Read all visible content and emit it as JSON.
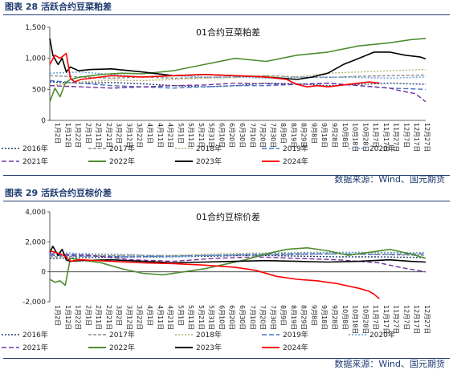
{
  "figures": [
    {
      "caption": "图表 28 活跃合约豆菜粕差",
      "source": "数据来源：Wind、国元期货",
      "chart_data": {
        "type": "line",
        "title": "01合约豆菜粕差",
        "yticks": [
          "1,500",
          "1,000",
          "500",
          "0"
        ],
        "ylim": [
          0,
          1500
        ],
        "xtick_labels": [
          "1月2日",
          "1月12日",
          "1月22日",
          "2月1日",
          "2月11日",
          "2月21日",
          "3月2日",
          "3月12日",
          "3月22日",
          "4月1日",
          "4月11日",
          "4月21日",
          "5月1日",
          "5月11日",
          "5月21日",
          "5月31日",
          "6月10日",
          "6月20日",
          "6月30日",
          "7月10日",
          "7月20日",
          "7月30日",
          "8月9日",
          "8月19日",
          "8月29日",
          "9月8日",
          "9月18日",
          "9月28日",
          "10月8日",
          "10月18日",
          "10月28日",
          "11月7日",
          "11月17日",
          "11月27日",
          "12月7日",
          "12月17日",
          "12月27日"
        ],
        "legend": [
          "2016年",
          "2017年",
          "2018年",
          "2019年",
          "2020年",
          "2021年",
          "2022年",
          "2023年",
          "2024年"
        ],
        "series": [
          {
            "name": "2016年",
            "color": "#1f3b70",
            "dash": "2,2",
            "x": [
              0,
              30,
              60,
              90,
              120,
              150,
              180,
              210,
              240,
              270,
              300,
              330,
              365
            ],
            "y": [
              620,
              600,
              610,
              590,
              560,
              540,
              560,
              600,
              590,
              560,
              580,
              600,
              580
            ]
          },
          {
            "name": "2017年",
            "color": "#8c8c8c",
            "dash": "4,2",
            "x": [
              0,
              30,
              60,
              90,
              120,
              150,
              180,
              210,
              240,
              270,
              300,
              330,
              365
            ],
            "y": [
              720,
              700,
              680,
              700,
              680,
              690,
              700,
              720,
              700,
              690,
              710,
              720,
              730
            ]
          },
          {
            "name": "2018年",
            "color": "#b5b06e",
            "dash": "2,2",
            "x": [
              0,
              30,
              60,
              90,
              120,
              150,
              180,
              210,
              240,
              270,
              300,
              330,
              365
            ],
            "y": [
              560,
              620,
              650,
              640,
              660,
              680,
              690,
              720,
              700,
              760,
              780,
              800,
              820
            ]
          },
          {
            "name": "2019年",
            "color": "#4472c4",
            "dash": "6,3",
            "x": [
              0,
              30,
              60,
              90,
              120,
              150,
              180,
              210,
              240,
              270,
              300,
              330,
              365
            ],
            "y": [
              640,
              600,
              560,
              540,
              520,
              540,
              560,
              560,
              580,
              600,
              560,
              520,
              500
            ]
          },
          {
            "name": "2020年",
            "color": "#5b9bd5",
            "dash": "2,2",
            "x": [
              0,
              30,
              60,
              90,
              120,
              150,
              180,
              210,
              240,
              270,
              300,
              330,
              365
            ],
            "y": [
              760,
              780,
              740,
              700,
              720,
              700,
              700,
              680,
              690,
              700,
              690,
              680,
              700
            ]
          },
          {
            "name": "2021年",
            "color": "#7030a0",
            "dash": "6,3",
            "x": [
              0,
              30,
              60,
              90,
              120,
              150,
              180,
              210,
              240,
              270,
              300,
              330,
              340,
              355,
              365
            ],
            "y": [
              560,
              540,
              520,
              540,
              560,
              570,
              600,
              590,
              580,
              600,
              560,
              520,
              480,
              430,
              300
            ]
          },
          {
            "name": "2022年",
            "color": "#4e8c2e",
            "dash": "",
            "x": [
              0,
              5,
              10,
              15,
              20,
              30,
              50,
              70,
              90,
              120,
              150,
              180,
              210,
              240,
              270,
              300,
              330,
              350,
              365
            ],
            "y": [
              300,
              520,
              380,
              600,
              660,
              700,
              740,
              760,
              750,
              800,
              900,
              1000,
              950,
              1050,
              1100,
              1200,
              1250,
              1300,
              1320
            ]
          },
          {
            "name": "2023年",
            "color": "#000000",
            "dash": "",
            "x": [
              0,
              3,
              8,
              12,
              16,
              20,
              28,
              40,
              60,
              90,
              120,
              150,
              180,
              210,
              240,
              255,
              270,
              285,
              300,
              315,
              330,
              345,
              360,
              365
            ],
            "y": [
              1320,
              1050,
              900,
              1000,
              780,
              860,
              800,
              820,
              830,
              780,
              720,
              740,
              720,
              700,
              660,
              700,
              760,
              900,
              1000,
              1100,
              1100,
              1050,
              1020,
              990
            ]
          },
          {
            "name": "2024年",
            "color": "#ff0000",
            "dash": "",
            "x": [
              0,
              5,
              10,
              16,
              20,
              24,
              30,
              60,
              90,
              120,
              150,
              180,
              210,
              230,
              240,
              250,
              260,
              270,
              280,
              290,
              300,
              310,
              320
            ],
            "y": [
              900,
              1050,
              1000,
              1080,
              680,
              620,
              660,
              720,
              700,
              720,
              740,
              720,
              700,
              660,
              580,
              540,
              560,
              540,
              560,
              580,
              600,
              620,
              600
            ]
          }
        ]
      }
    },
    {
      "caption": "图表 29 活跃合约豆棕价差",
      "source": "数据来源：Wind、国元期货",
      "chart_data": {
        "type": "line",
        "title": "01合约豆棕价差",
        "yticks": [
          "4,000",
          "2,000",
          "0",
          "-2,000"
        ],
        "ylim": [
          -2000,
          4000
        ],
        "xtick_labels": [
          "1月2日",
          "1月12日",
          "1月22日",
          "2月1日",
          "2月11日",
          "2月21日",
          "3月2日",
          "3月12日",
          "3月22日",
          "4月1日",
          "4月11日",
          "4月21日",
          "5月1日",
          "5月11日",
          "5月21日",
          "5月31日",
          "6月10日",
          "6月20日",
          "6月30日",
          "7月10日",
          "7月20日",
          "7月30日",
          "8月9日",
          "8月19日",
          "8月29日",
          "9月8日",
          "9月18日",
          "9月28日",
          "10月8日",
          "10月18日",
          "10月28日",
          "11月7日",
          "11月17日",
          "11月27日",
          "12月7日",
          "12月17日",
          "12月27日"
        ],
        "legend": [
          "2016年",
          "2017年",
          "2018年",
          "2019年",
          "2020年",
          "2021年",
          "2022年",
          "2023年",
          "2024年"
        ],
        "series": [
          {
            "name": "2016年",
            "color": "#1f3b70",
            "dash": "2,2",
            "x": [
              0,
              40,
              80,
              120,
              160,
              200,
              240,
              280,
              320,
              365
            ],
            "y": [
              900,
              950,
              1000,
              1000,
              1050,
              1100,
              1050,
              1000,
              1000,
              950
            ]
          },
          {
            "name": "2017年",
            "color": "#8c8c8c",
            "dash": "4,2",
            "x": [
              0,
              40,
              80,
              120,
              160,
              200,
              240,
              280,
              320,
              365
            ],
            "y": [
              1000,
              1050,
              1100,
              1050,
              1100,
              1100,
              1150,
              1200,
              1150,
              1100
            ]
          },
          {
            "name": "2018年",
            "color": "#b5b06e",
            "dash": "2,2",
            "x": [
              0,
              40,
              80,
              120,
              160,
              200,
              240,
              280,
              320,
              365
            ],
            "y": [
              1100,
              1150,
              1100,
              1100,
              1200,
              1250,
              1300,
              1300,
              1250,
              1300
            ]
          },
          {
            "name": "2019年",
            "color": "#4472c4",
            "dash": "6,3",
            "x": [
              0,
              40,
              80,
              120,
              160,
              200,
              240,
              280,
              320,
              365
            ],
            "y": [
              1100,
              1050,
              1000,
              1050,
              1100,
              1150,
              1200,
              1200,
              1150,
              1200
            ]
          },
          {
            "name": "2020年",
            "color": "#5b9bd5",
            "dash": "2,2",
            "x": [
              0,
              40,
              80,
              120,
              160,
              200,
              240,
              280,
              320,
              365
            ],
            "y": [
              1300,
              1200,
              1150,
              1000,
              1100,
              1200,
              1250,
              1300,
              1300,
              1250
            ]
          },
          {
            "name": "2021年",
            "color": "#7030a0",
            "dash": "6,3",
            "x": [
              0,
              40,
              80,
              120,
              160,
              200,
              240,
              280,
              320,
              340,
              365
            ],
            "y": [
              1200,
              1100,
              800,
              700,
              900,
              1000,
              900,
              800,
              600,
              300,
              0
            ]
          },
          {
            "name": "2022年",
            "color": "#4e8c2e",
            "dash": "",
            "x": [
              0,
              5,
              10,
              15,
              20,
              30,
              50,
              70,
              90,
              110,
              130,
              150,
              170,
              190,
              210,
              230,
              250,
              270,
              290,
              310,
              330,
              350,
              365
            ],
            "y": [
              -500,
              -700,
              -600,
              -900,
              900,
              800,
              600,
              200,
              -100,
              -200,
              0,
              200,
              500,
              800,
              1200,
              1500,
              1600,
              1400,
              1100,
              1300,
              1500,
              1200,
              900
            ]
          },
          {
            "name": "2023年",
            "color": "#000000",
            "dash": "",
            "x": [
              0,
              3,
              8,
              12,
              16,
              20,
              30,
              60,
              90,
              120,
              150,
              180,
              210,
              240,
              270,
              300,
              330,
              350,
              365
            ],
            "y": [
              1300,
              1700,
              1100,
              1500,
              800,
              700,
              750,
              800,
              700,
              600,
              650,
              700,
              750,
              700,
              650,
              700,
              800,
              700,
              650
            ]
          },
          {
            "name": "2024年",
            "color": "#ff0000",
            "dash": "",
            "x": [
              0,
              5,
              10,
              16,
              20,
              24,
              30,
              60,
              90,
              120,
              150,
              180,
              200,
              220,
              240,
              260,
              280,
              300,
              310,
              315,
              320
            ],
            "y": [
              1400,
              1300,
              1200,
              1000,
              700,
              750,
              800,
              700,
              600,
              550,
              450,
              300,
              100,
              -300,
              -500,
              -600,
              -800,
              -1100,
              -1300,
              -1500,
              -1800
            ]
          }
        ]
      }
    }
  ]
}
